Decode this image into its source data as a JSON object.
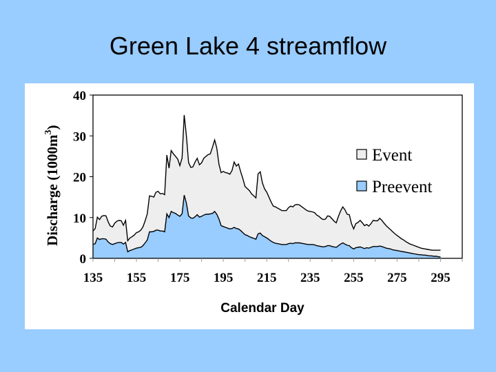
{
  "slide": {
    "title": "Green Lake 4 streamflow",
    "background_color": "#99ccff"
  },
  "chart_data": {
    "type": "area",
    "title": "Green Lake 4 streamflow",
    "xlabel": "Calendar Day",
    "ylabel": "Discharge (1000m3)",
    "ylabel_main": "Discharge (1000m",
    "ylabel_sup": "3",
    "ylabel_close": ")",
    "xlim": [
      135,
      305
    ],
    "ylim": [
      0,
      40
    ],
    "x_ticks": [
      "135",
      "155",
      "175",
      "195",
      "215",
      "235",
      "255",
      "275",
      "295"
    ],
    "y_ticks": [
      "0",
      "10",
      "20",
      "30",
      "40"
    ],
    "grid": false,
    "stacked": true,
    "legend_position": "right",
    "legend": [
      {
        "name": "Event",
        "color": "#eeeeee"
      },
      {
        "name": "Preevent",
        "color": "#99ccff"
      }
    ],
    "series": [
      {
        "name": "Total (Event top)",
        "color": "#eeeeee",
        "points": [
          [
            135,
            6.7
          ],
          [
            136,
            7.3
          ],
          [
            137,
            10.1
          ],
          [
            138,
            9.5
          ],
          [
            139,
            10.3
          ],
          [
            140,
            10.5
          ],
          [
            141,
            10.4
          ],
          [
            142,
            8.9
          ],
          [
            143,
            7.9
          ],
          [
            144,
            7.7
          ],
          [
            145,
            8.6
          ],
          [
            146,
            9.1
          ],
          [
            147,
            9.3
          ],
          [
            148,
            9.2
          ],
          [
            149,
            8.1
          ],
          [
            150,
            9.3
          ],
          [
            151,
            4.3
          ],
          [
            152,
            5.0
          ],
          [
            153,
            5.3
          ],
          [
            154,
            5.7
          ],
          [
            155,
            6.3
          ],
          [
            156,
            6.5
          ],
          [
            157,
            6.9
          ],
          [
            158,
            7.7
          ],
          [
            159,
            9.2
          ],
          [
            160,
            10.9
          ],
          [
            161,
            15.3
          ],
          [
            162,
            15.2
          ],
          [
            163,
            15.0
          ],
          [
            164,
            16.2
          ],
          [
            165,
            16.4
          ],
          [
            166,
            15.8
          ],
          [
            167,
            15.9
          ],
          [
            168,
            15.6
          ],
          [
            169,
            25.3
          ],
          [
            170,
            22.1
          ],
          [
            171,
            26.4
          ],
          [
            172,
            25.6
          ],
          [
            173,
            25.0
          ],
          [
            174,
            24.3
          ],
          [
            175,
            22.7
          ],
          [
            176,
            24.6
          ],
          [
            177,
            35.1
          ],
          [
            178,
            30.0
          ],
          [
            179,
            23.5
          ],
          [
            180,
            22.3
          ],
          [
            181,
            22.4
          ],
          [
            182,
            23.6
          ],
          [
            183,
            24.5
          ],
          [
            184,
            22.9
          ],
          [
            185,
            23.4
          ],
          [
            186,
            24.5
          ],
          [
            187,
            25.0
          ],
          [
            188,
            25.4
          ],
          [
            189,
            25.6
          ],
          [
            190,
            27.2
          ],
          [
            191,
            29.0
          ],
          [
            192,
            27.0
          ],
          [
            193,
            23.0
          ],
          [
            194,
            21.0
          ],
          [
            195,
            21.3
          ],
          [
            196,
            21.0
          ],
          [
            197,
            20.9
          ],
          [
            198,
            20.6
          ],
          [
            199,
            21.5
          ],
          [
            200,
            23.6
          ],
          [
            201,
            22.6
          ],
          [
            202,
            23.1
          ],
          [
            203,
            21.2
          ],
          [
            204,
            19.5
          ],
          [
            205,
            17.6
          ],
          [
            206,
            17.1
          ],
          [
            207,
            16.6
          ],
          [
            208,
            15.8
          ],
          [
            209,
            15.3
          ],
          [
            210,
            14.8
          ],
          [
            211,
            20.7
          ],
          [
            212,
            21.2
          ],
          [
            213,
            18.5
          ],
          [
            214,
            17.0
          ],
          [
            215,
            16.2
          ],
          [
            216,
            15.0
          ],
          [
            217,
            13.8
          ],
          [
            218,
            12.8
          ],
          [
            219,
            12.6
          ],
          [
            220,
            12.3
          ],
          [
            221,
            12.0
          ],
          [
            222,
            11.7
          ],
          [
            223,
            11.7
          ],
          [
            224,
            11.7
          ],
          [
            225,
            12.4
          ],
          [
            226,
            12.8
          ],
          [
            227,
            12.6
          ],
          [
            228,
            13.1
          ],
          [
            229,
            13.2
          ],
          [
            230,
            13.1
          ],
          [
            231,
            12.7
          ],
          [
            232,
            12.3
          ],
          [
            233,
            11.9
          ],
          [
            234,
            11.6
          ],
          [
            235,
            11.5
          ],
          [
            236,
            11.4
          ],
          [
            237,
            11.2
          ],
          [
            238,
            10.6
          ],
          [
            239,
            10.3
          ],
          [
            240,
            9.8
          ],
          [
            241,
            9.5
          ],
          [
            242,
            9.6
          ],
          [
            243,
            10.4
          ],
          [
            244,
            10.3
          ],
          [
            245,
            9.7
          ],
          [
            246,
            9.1
          ],
          [
            247,
            8.7
          ],
          [
            248,
            10.3
          ],
          [
            249,
            11.6
          ],
          [
            250,
            12.6
          ],
          [
            251,
            11.9
          ],
          [
            252,
            10.8
          ],
          [
            253,
            10.7
          ],
          [
            254,
            8.5
          ],
          [
            255,
            7.2
          ],
          [
            256,
            8.5
          ],
          [
            257,
            8.8
          ],
          [
            258,
            9.3
          ],
          [
            259,
            8.7
          ],
          [
            260,
            8.0
          ],
          [
            261,
            8.3
          ],
          [
            262,
            7.9
          ],
          [
            263,
            8.5
          ],
          [
            264,
            9.3
          ],
          [
            265,
            9.2
          ],
          [
            266,
            9.2
          ],
          [
            267,
            9.8
          ],
          [
            268,
            9.3
          ],
          [
            269,
            8.6
          ],
          [
            270,
            8.0
          ],
          [
            271,
            7.5
          ],
          [
            272,
            7.0
          ],
          [
            273,
            6.5
          ],
          [
            274,
            6.0
          ],
          [
            275,
            5.6
          ],
          [
            276,
            5.2
          ],
          [
            277,
            4.8
          ],
          [
            278,
            4.5
          ],
          [
            279,
            4.1
          ],
          [
            280,
            3.8
          ],
          [
            281,
            3.5
          ],
          [
            282,
            3.3
          ],
          [
            283,
            3.1
          ],
          [
            284,
            2.9
          ],
          [
            285,
            2.7
          ],
          [
            286,
            2.5
          ],
          [
            287,
            2.4
          ],
          [
            288,
            2.3
          ],
          [
            289,
            2.2
          ],
          [
            290,
            2.1
          ],
          [
            291,
            2.0
          ],
          [
            292,
            2.0
          ],
          [
            293,
            2.0
          ],
          [
            294,
            2.0
          ],
          [
            295,
            2.0
          ]
        ]
      },
      {
        "name": "Preevent",
        "color": "#99ccff",
        "points": [
          [
            135,
            3.4
          ],
          [
            136,
            3.6
          ],
          [
            137,
            5.0
          ],
          [
            138,
            4.6
          ],
          [
            139,
            4.8
          ],
          [
            140,
            4.8
          ],
          [
            141,
            4.7
          ],
          [
            142,
            4.0
          ],
          [
            143,
            3.6
          ],
          [
            144,
            3.4
          ],
          [
            145,
            3.6
          ],
          [
            146,
            3.8
          ],
          [
            147,
            3.9
          ],
          [
            148,
            3.9
          ],
          [
            149,
            3.5
          ],
          [
            150,
            3.9
          ],
          [
            151,
            1.6
          ],
          [
            152,
            1.9
          ],
          [
            153,
            2.1
          ],
          [
            154,
            2.3
          ],
          [
            155,
            2.5
          ],
          [
            156,
            2.6
          ],
          [
            157,
            2.7
          ],
          [
            158,
            3.1
          ],
          [
            159,
            3.8
          ],
          [
            160,
            4.5
          ],
          [
            161,
            6.5
          ],
          [
            162,
            6.5
          ],
          [
            163,
            6.6
          ],
          [
            164,
            6.9
          ],
          [
            165,
            6.9
          ],
          [
            166,
            6.7
          ],
          [
            167,
            6.7
          ],
          [
            168,
            6.5
          ],
          [
            169,
            10.9
          ],
          [
            170,
            10.0
          ],
          [
            171,
            11.5
          ],
          [
            172,
            11.2
          ],
          [
            173,
            11.0
          ],
          [
            174,
            10.6
          ],
          [
            175,
            10.3
          ],
          [
            176,
            10.9
          ],
          [
            177,
            15.5
          ],
          [
            178,
            13.5
          ],
          [
            179,
            10.4
          ],
          [
            180,
            9.9
          ],
          [
            181,
            9.8
          ],
          [
            182,
            10.2
          ],
          [
            183,
            10.7
          ],
          [
            184,
            10.1
          ],
          [
            185,
            10.3
          ],
          [
            186,
            10.6
          ],
          [
            187,
            10.8
          ],
          [
            188,
            10.8
          ],
          [
            189,
            10.9
          ],
          [
            190,
            11.0
          ],
          [
            191,
            11.5
          ],
          [
            192,
            10.8
          ],
          [
            193,
            9.6
          ],
          [
            194,
            8.0
          ],
          [
            195,
            7.8
          ],
          [
            196,
            7.6
          ],
          [
            197,
            7.4
          ],
          [
            198,
            7.2
          ],
          [
            199,
            7.3
          ],
          [
            200,
            7.6
          ],
          [
            201,
            7.3
          ],
          [
            202,
            7.2
          ],
          [
            203,
            6.8
          ],
          [
            204,
            6.3
          ],
          [
            205,
            5.8
          ],
          [
            206,
            5.6
          ],
          [
            207,
            5.3
          ],
          [
            208,
            5.1
          ],
          [
            209,
            4.9
          ],
          [
            210,
            4.7
          ],
          [
            211,
            6.0
          ],
          [
            212,
            6.2
          ],
          [
            213,
            5.6
          ],
          [
            214,
            5.3
          ],
          [
            215,
            5.0
          ],
          [
            216,
            4.6
          ],
          [
            217,
            4.2
          ],
          [
            218,
            3.9
          ],
          [
            219,
            3.7
          ],
          [
            220,
            3.6
          ],
          [
            221,
            3.5
          ],
          [
            222,
            3.4
          ],
          [
            223,
            3.4
          ],
          [
            224,
            3.4
          ],
          [
            225,
            3.6
          ],
          [
            226,
            3.7
          ],
          [
            227,
            3.6
          ],
          [
            228,
            3.8
          ],
          [
            229,
            3.8
          ],
          [
            230,
            3.8
          ],
          [
            231,
            3.7
          ],
          [
            232,
            3.6
          ],
          [
            233,
            3.5
          ],
          [
            234,
            3.4
          ],
          [
            235,
            3.4
          ],
          [
            236,
            3.4
          ],
          [
            237,
            3.3
          ],
          [
            238,
            3.1
          ],
          [
            239,
            3.0
          ],
          [
            240,
            2.9
          ],
          [
            241,
            2.8
          ],
          [
            242,
            2.9
          ],
          [
            243,
            3.1
          ],
          [
            244,
            3.1
          ],
          [
            245,
            2.9
          ],
          [
            246,
            2.8
          ],
          [
            247,
            2.7
          ],
          [
            248,
            3.1
          ],
          [
            249,
            3.5
          ],
          [
            250,
            3.8
          ],
          [
            251,
            3.5
          ],
          [
            252,
            3.2
          ],
          [
            253,
            3.1
          ],
          [
            254,
            2.6
          ],
          [
            255,
            2.3
          ],
          [
            256,
            2.6
          ],
          [
            257,
            2.7
          ],
          [
            258,
            2.8
          ],
          [
            259,
            2.6
          ],
          [
            260,
            2.4
          ],
          [
            261,
            2.6
          ],
          [
            262,
            2.5
          ],
          [
            263,
            2.7
          ],
          [
            264,
            2.9
          ],
          [
            265,
            2.9
          ],
          [
            266,
            2.9
          ],
          [
            267,
            3.0
          ],
          [
            268,
            2.9
          ],
          [
            269,
            2.7
          ],
          [
            270,
            2.5
          ],
          [
            271,
            2.4
          ],
          [
            272,
            2.3
          ],
          [
            273,
            2.1
          ],
          [
            274,
            2.0
          ],
          [
            275,
            1.9
          ],
          [
            276,
            1.8
          ],
          [
            277,
            1.7
          ],
          [
            278,
            1.6
          ],
          [
            279,
            1.5
          ],
          [
            280,
            1.4
          ],
          [
            281,
            1.3
          ],
          [
            282,
            1.2
          ],
          [
            283,
            1.1
          ],
          [
            284,
            1.0
          ],
          [
            285,
            0.9
          ],
          [
            286,
            0.9
          ],
          [
            287,
            0.8
          ],
          [
            288,
            0.8
          ],
          [
            289,
            0.7
          ],
          [
            290,
            0.6
          ],
          [
            291,
            0.6
          ],
          [
            292,
            0.5
          ],
          [
            293,
            0.5
          ],
          [
            294,
            0.4
          ],
          [
            295,
            0.3
          ]
        ]
      }
    ]
  }
}
